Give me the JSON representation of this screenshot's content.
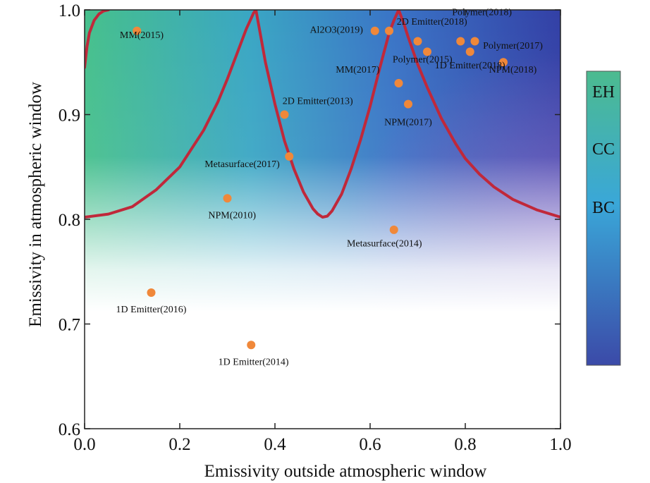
{
  "chart_data": {
    "type": "scatter",
    "xlabel": "Emissivity outside atmospheric window",
    "ylabel": "Emissivity in atmospheric window",
    "xlim": [
      0.0,
      1.0
    ],
    "ylim": [
      0.6,
      1.0
    ],
    "x_ticks": [
      "0.0",
      "0.2",
      "0.4",
      "0.6",
      "0.8",
      "1.0"
    ],
    "y_ticks": [
      "0.6",
      "0.7",
      "0.8",
      "0.9",
      "1.0"
    ],
    "grid": false,
    "point_color": "#f0883a",
    "curve_color": "#c0283a",
    "points": [
      {
        "x": 0.11,
        "y": 0.98,
        "label": "MM(2015)",
        "lx": 0.12,
        "ly": 0.973,
        "anchor": "middle"
      },
      {
        "x": 0.61,
        "y": 0.98,
        "label": "Al2O3(2019)",
        "lx": 0.585,
        "ly": 0.978,
        "anchor": "end"
      },
      {
        "x": 0.64,
        "y": 0.98,
        "label": "",
        "lx": 0.64,
        "ly": 0.98,
        "anchor": "middle"
      },
      {
        "x": 0.72,
        "y": 0.96,
        "label": "Polymer(2015)",
        "lx": 0.71,
        "ly": 0.95,
        "anchor": "middle"
      },
      {
        "x": 0.66,
        "y": 0.93,
        "label": "MM(2017)",
        "lx": 0.62,
        "ly": 0.94,
        "anchor": "end"
      },
      {
        "x": 0.68,
        "y": 0.91,
        "label": "NPM(2017)",
        "lx": 0.68,
        "ly": 0.89,
        "anchor": "middle"
      },
      {
        "x": 0.79,
        "y": 0.97,
        "label": "2D Emitter(2018)",
        "lx": 0.73,
        "ly": 0.986,
        "anchor": "middle"
      },
      {
        "x": 0.82,
        "y": 0.97,
        "label": "Polymer(2018)",
        "lx": 0.835,
        "ly": 0.995,
        "anchor": "middle"
      },
      {
        "x": 0.81,
        "y": 0.96,
        "label": "1D Emitter(2018)",
        "lx": 0.81,
        "ly": 0.944,
        "anchor": "middle"
      },
      {
        "x": 0.88,
        "y": 0.95,
        "label": "NPM(2018)",
        "lx": 0.9,
        "ly": 0.94,
        "anchor": "middle"
      },
      {
        "x": 0.7,
        "y": 0.97,
        "label": "Polymer(2017)",
        "lx": 0.9,
        "ly": 0.963,
        "anchor": "middle"
      },
      {
        "x": 0.42,
        "y": 0.9,
        "label": "2D Emitter(2013)",
        "lx": 0.49,
        "ly": 0.91,
        "anchor": "middle"
      },
      {
        "x": 0.43,
        "y": 0.86,
        "label": "Metasurface(2017)",
        "lx": 0.41,
        "ly": 0.85,
        "anchor": "end"
      },
      {
        "x": 0.3,
        "y": 0.82,
        "label": "NPM(2010)",
        "lx": 0.31,
        "ly": 0.801,
        "anchor": "middle"
      },
      {
        "x": 0.65,
        "y": 0.79,
        "label": "Metasurface(2014)",
        "lx": 0.63,
        "ly": 0.774,
        "anchor": "middle"
      },
      {
        "x": 0.14,
        "y": 0.73,
        "label": "1D Emitter(2016)",
        "lx": 0.14,
        "ly": 0.711,
        "anchor": "middle"
      },
      {
        "x": 0.35,
        "y": 0.68,
        "label": "1D Emitter(2014)",
        "lx": 0.355,
        "ly": 0.661,
        "anchor": "middle"
      }
    ],
    "boundary_curves": [
      {
        "x": [
          0.0,
          0.005,
          0.01,
          0.02,
          0.03,
          0.04,
          0.05
        ],
        "y": [
          0.945,
          0.965,
          0.978,
          0.99,
          0.996,
          0.999,
          1.0
        ]
      },
      {
        "x": [
          0.0,
          0.05,
          0.1,
          0.15,
          0.2,
          0.25,
          0.28,
          0.3,
          0.32,
          0.34,
          0.35,
          0.355,
          0.36
        ],
        "y": [
          0.802,
          0.805,
          0.812,
          0.828,
          0.85,
          0.885,
          0.912,
          0.934,
          0.958,
          0.982,
          0.992,
          0.997,
          1.0
        ]
      },
      {
        "x": [
          0.36,
          0.37,
          0.38,
          0.4,
          0.42,
          0.44,
          0.46,
          0.48,
          0.49,
          0.5,
          0.51,
          0.52,
          0.54,
          0.56,
          0.58,
          0.6,
          0.62,
          0.64,
          0.65,
          0.66
        ],
        "y": [
          1.0,
          0.975,
          0.95,
          0.91,
          0.875,
          0.848,
          0.826,
          0.81,
          0.805,
          0.802,
          0.803,
          0.808,
          0.824,
          0.848,
          0.876,
          0.908,
          0.944,
          0.978,
          0.99,
          1.0
        ]
      },
      {
        "x": [
          0.66,
          0.67,
          0.68,
          0.7,
          0.72,
          0.75,
          0.78,
          0.8,
          0.83,
          0.86,
          0.9,
          0.95,
          1.0
        ],
        "y": [
          1.0,
          0.988,
          0.974,
          0.948,
          0.926,
          0.896,
          0.872,
          0.858,
          0.843,
          0.831,
          0.819,
          0.809,
          0.802
        ]
      }
    ],
    "colorbar": {
      "labels": [
        "EH",
        "CC",
        "BC"
      ],
      "colors": [
        "#4cbb8f",
        "#3aa7d8",
        "#3b4aa8"
      ]
    },
    "gradient_colors": {
      "top_left": "#46c08c",
      "top_right": "#3445a8",
      "mid_right": "#7a5cbf",
      "bottom": "#ffffff"
    }
  }
}
